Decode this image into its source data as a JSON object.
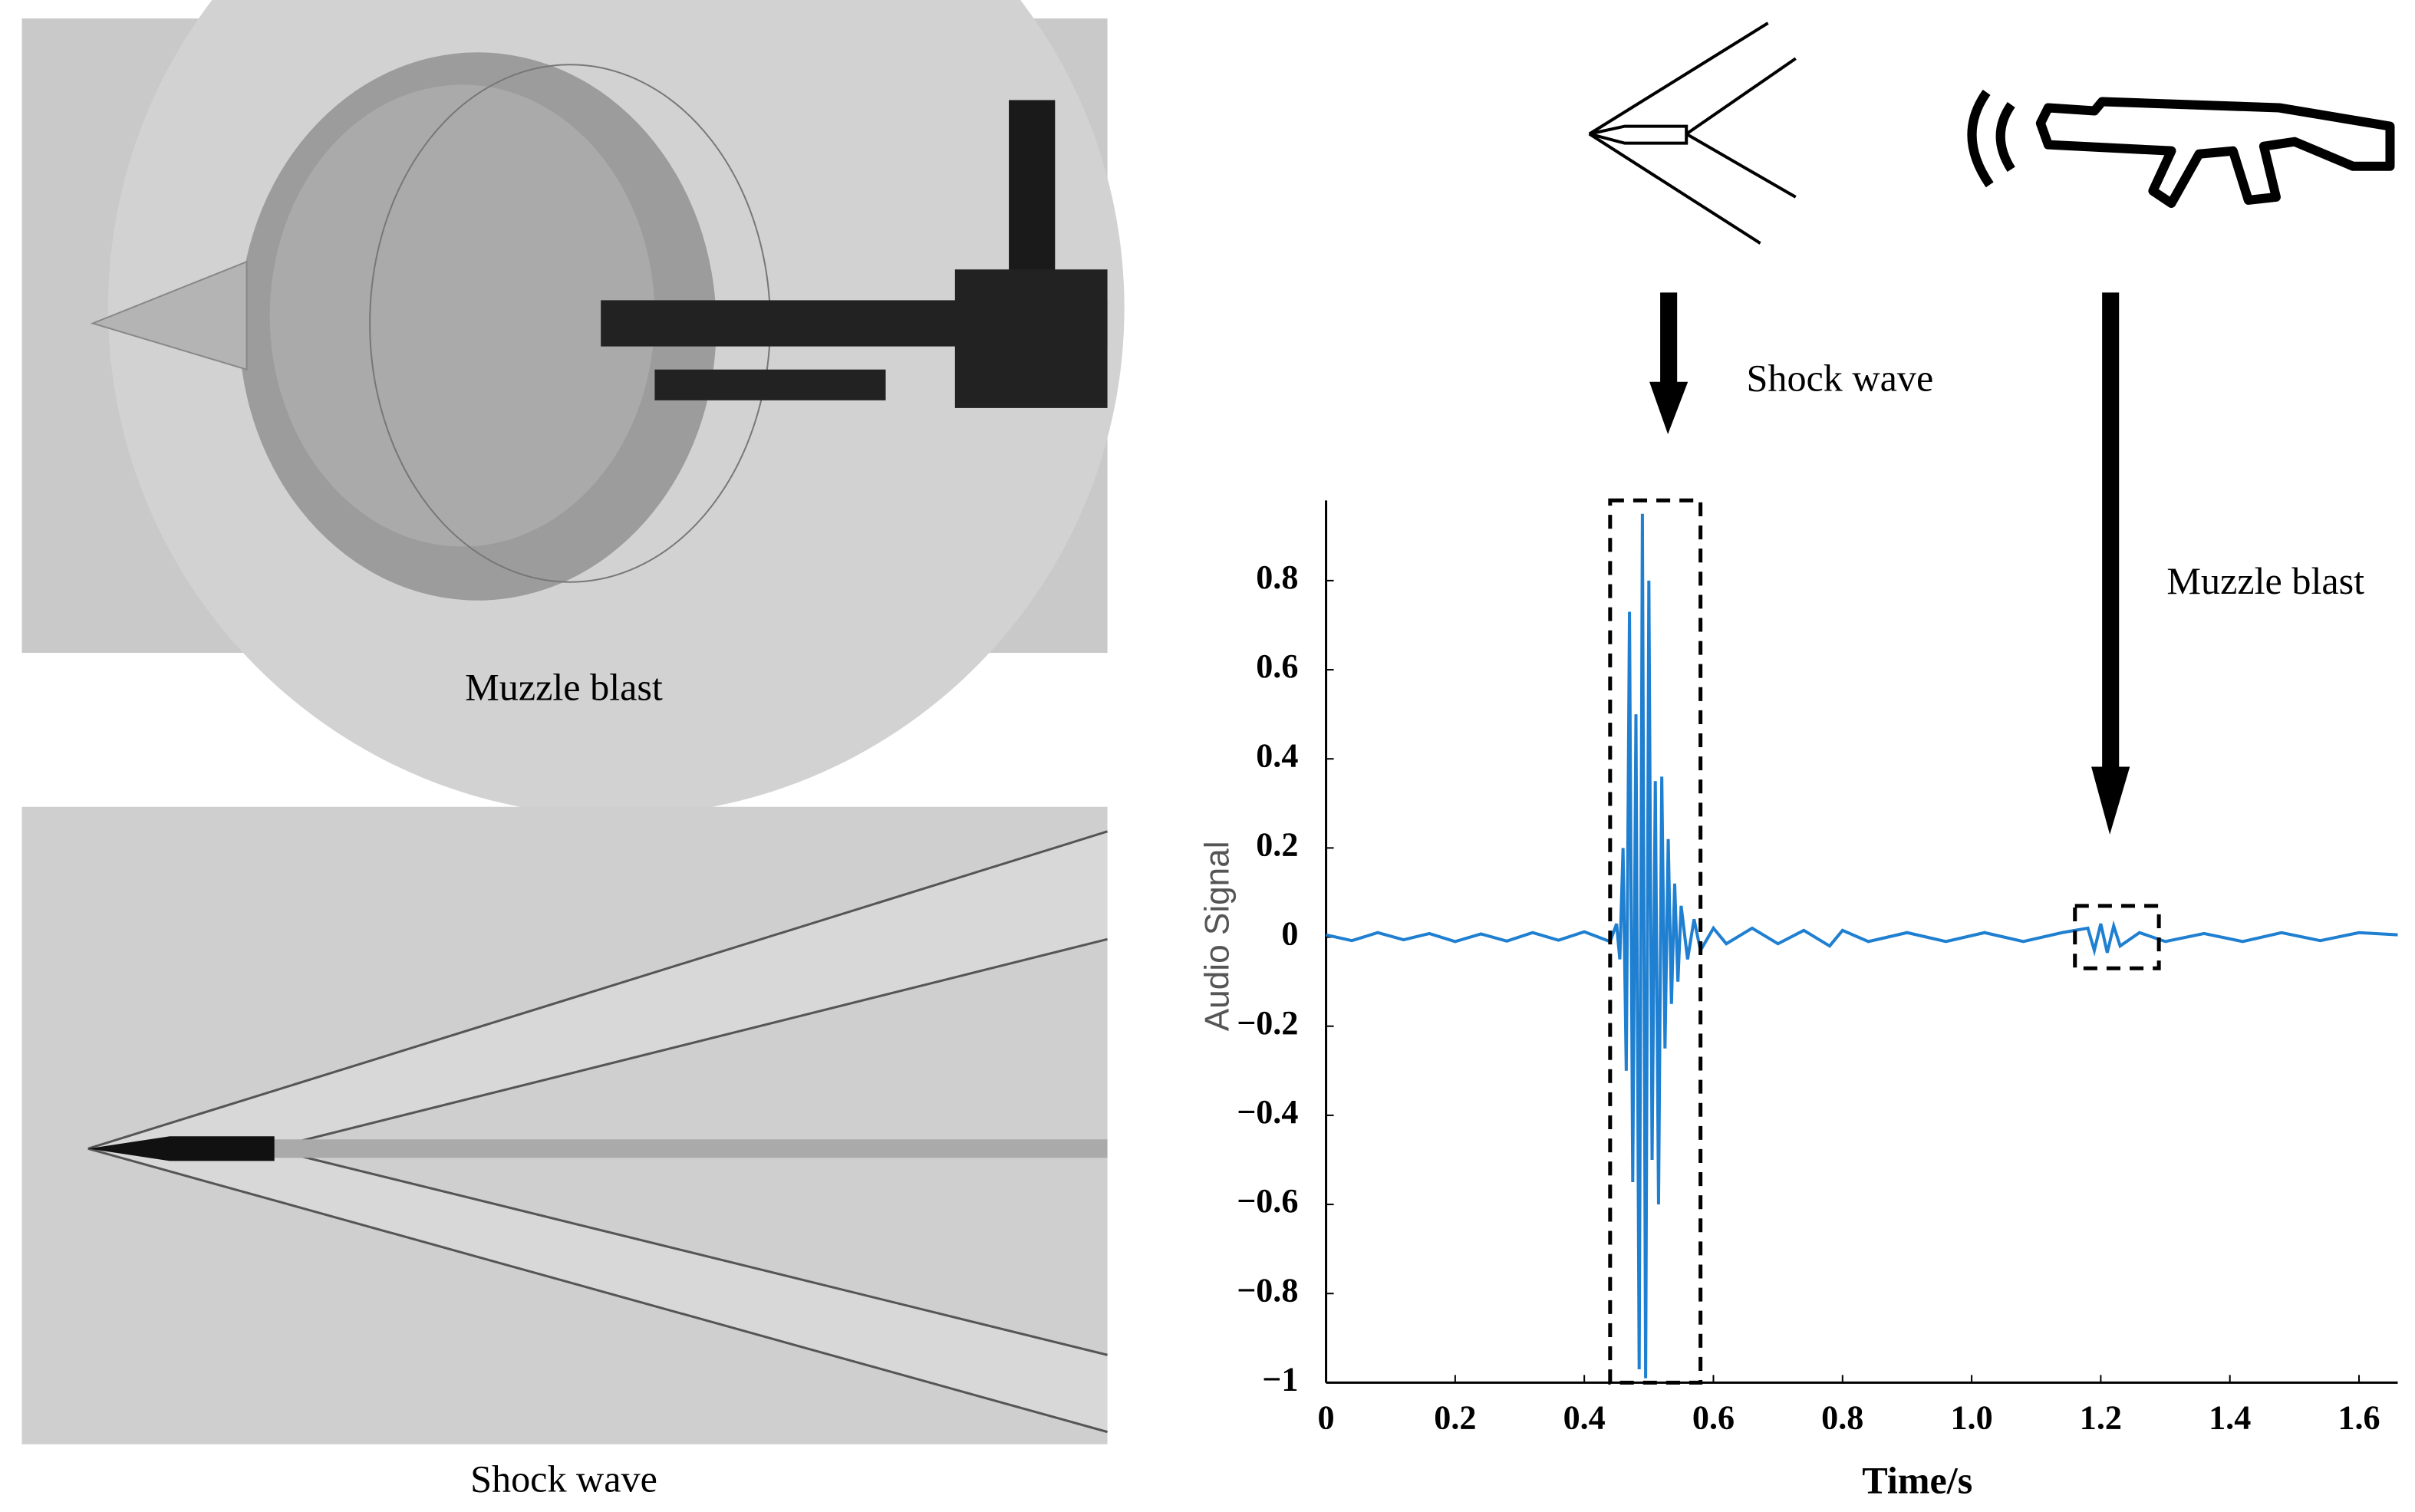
{
  "photos": [
    {
      "caption": "Muzzle blast"
    },
    {
      "caption": "Shock wave"
    }
  ],
  "chart_data": {
    "type": "line",
    "x_label": "Time/s",
    "y_label": "Audio Signal",
    "annotations": [
      "Shock wave",
      "Muzzle blast"
    ],
    "color": "#1f7fd0",
    "x": [
      0,
      0.04,
      0.08,
      0.12,
      0.16,
      0.2,
      0.24,
      0.28,
      0.32,
      0.36,
      0.4,
      0.44,
      0.45,
      0.455,
      0.46,
      0.465,
      0.47,
      0.475,
      0.48,
      0.485,
      0.49,
      0.495,
      0.5,
      0.505,
      0.51,
      0.515,
      0.52,
      0.525,
      0.53,
      0.535,
      0.54,
      0.545,
      0.55,
      0.56,
      0.57,
      0.58,
      0.6,
      0.62,
      0.66,
      0.7,
      0.74,
      0.78,
      0.8,
      0.84,
      0.9,
      0.96,
      1.02,
      1.08,
      1.14,
      1.18,
      1.19,
      1.2,
      1.21,
      1.22,
      1.23,
      1.26,
      1.3,
      1.36,
      1.42,
      1.48,
      1.54,
      1.6,
      1.66
    ],
    "values": [
      0.005,
      -0.008,
      0.01,
      -0.006,
      0.008,
      -0.01,
      0.007,
      -0.009,
      0.01,
      -0.007,
      0.012,
      -0.01,
      0.03,
      -0.05,
      0.2,
      -0.3,
      0.73,
      -0.55,
      0.5,
      -0.97,
      0.95,
      -0.99,
      0.8,
      -0.5,
      0.35,
      -0.6,
      0.36,
      -0.25,
      0.22,
      -0.15,
      0.12,
      -0.1,
      0.07,
      -0.05,
      0.04,
      -0.03,
      0.02,
      -0.015,
      0.02,
      -0.015,
      0.015,
      -0.02,
      0.015,
      -0.01,
      0.01,
      -0.01,
      0.01,
      -0.01,
      0.01,
      0.02,
      -0.03,
      0.03,
      -0.035,
      0.025,
      -0.02,
      0.01,
      -0.01,
      0.008,
      -0.01,
      0.01,
      -0.008,
      0.01,
      0.005
    ],
    "highlights": [
      {
        "x": [
          0.44,
          0.58
        ],
        "y": [
          -1,
          0.98
        ]
      },
      {
        "x": [
          1.16,
          1.29
        ],
        "y": [
          -0.07,
          0.07
        ]
      }
    ],
    "xlim": [
      0,
      1.66
    ],
    "ylim": [
      -1,
      0.98
    ],
    "xticks": [
      0,
      0.2,
      0.4,
      0.6,
      0.8,
      {
        "value": 1,
        "label": "1.0"
      },
      1.2,
      1.4,
      1.6
    ],
    "yticks": [
      {
        "value": -1,
        "label": "−1"
      },
      {
        "value": -0.8,
        "label": "−0.8"
      },
      {
        "value": -0.6,
        "label": "−0.6"
      },
      {
        "value": -0.4,
        "label": "−0.4"
      },
      {
        "value": -0.2,
        "label": "−0.2"
      },
      0,
      0.2,
      0.4,
      0.6,
      0.8
    ]
  }
}
